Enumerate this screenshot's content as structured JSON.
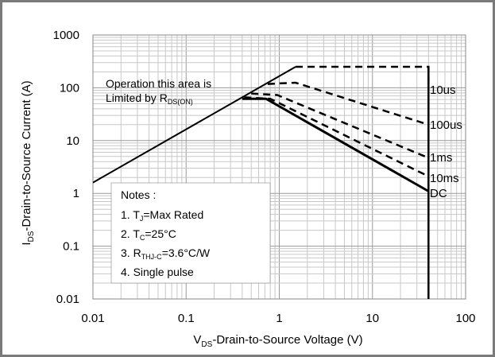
{
  "chart_data": {
    "type": "line",
    "xlabel_main": "V",
    "xlabel_sub": "DS",
    "xlabel_rest": "-Drain-to-Source Voltage  (V)",
    "ylabel_main": "I",
    "ylabel_sub": "DS",
    "ylabel_rest": "-Drain-to-Source Current  (A)",
    "xscale": "log",
    "yscale": "log",
    "xlim": [
      0.01,
      100
    ],
    "ylim": [
      0.01,
      1000
    ],
    "grid": true,
    "x_ticks": [
      "0.01",
      "0.1",
      "1",
      "10",
      "100"
    ],
    "y_ticks": [
      "0.01",
      "0.1",
      "1",
      "10",
      "100",
      "1000"
    ],
    "annotation": {
      "line1": "Operation this area is",
      "line2_main": "Limited  by R",
      "line2_sub": "DS(ON)"
    },
    "notes": {
      "title": "Notes :",
      "items": [
        {
          "main": "1. T",
          "sub": "J",
          "rest": "=Max Rated"
        },
        {
          "main": "2. T",
          "sub": "C",
          "rest": "=25°C"
        },
        {
          "main": "3. R",
          "sub": "THJ-C",
          "rest": "=3.6°C/W"
        },
        {
          "main": "4. Single pulse",
          "sub": "",
          "rest": ""
        }
      ]
    },
    "rds_on_limit": {
      "x": [
        0.01,
        1.5
      ],
      "y": [
        1.6,
        250
      ]
    },
    "vds_limit": {
      "x": [
        40,
        40
      ],
      "y": [
        0.01,
        250
      ]
    },
    "series": [
      {
        "name": "10us",
        "style": "dashed",
        "x": [
          1.5,
          40,
          40
        ],
        "y": [
          250,
          250,
          135
        ]
      },
      {
        "name": "100us",
        "style": "dashed",
        "x": [
          0.75,
          1.5,
          40
        ],
        "y": [
          118,
          125,
          20
        ]
      },
      {
        "name": "1ms",
        "style": "dashed",
        "x": [
          0.5,
          0.95,
          40
        ],
        "y": [
          78,
          73,
          4.7
        ]
      },
      {
        "name": "10ms",
        "style": "dashed",
        "x": [
          0.42,
          0.8,
          40
        ],
        "y": [
          66,
          62,
          2.1
        ]
      },
      {
        "name": "DC",
        "style": "solid",
        "x": [
          0.4,
          0.72,
          40
        ],
        "y": [
          62,
          62,
          1.1
        ]
      }
    ]
  }
}
